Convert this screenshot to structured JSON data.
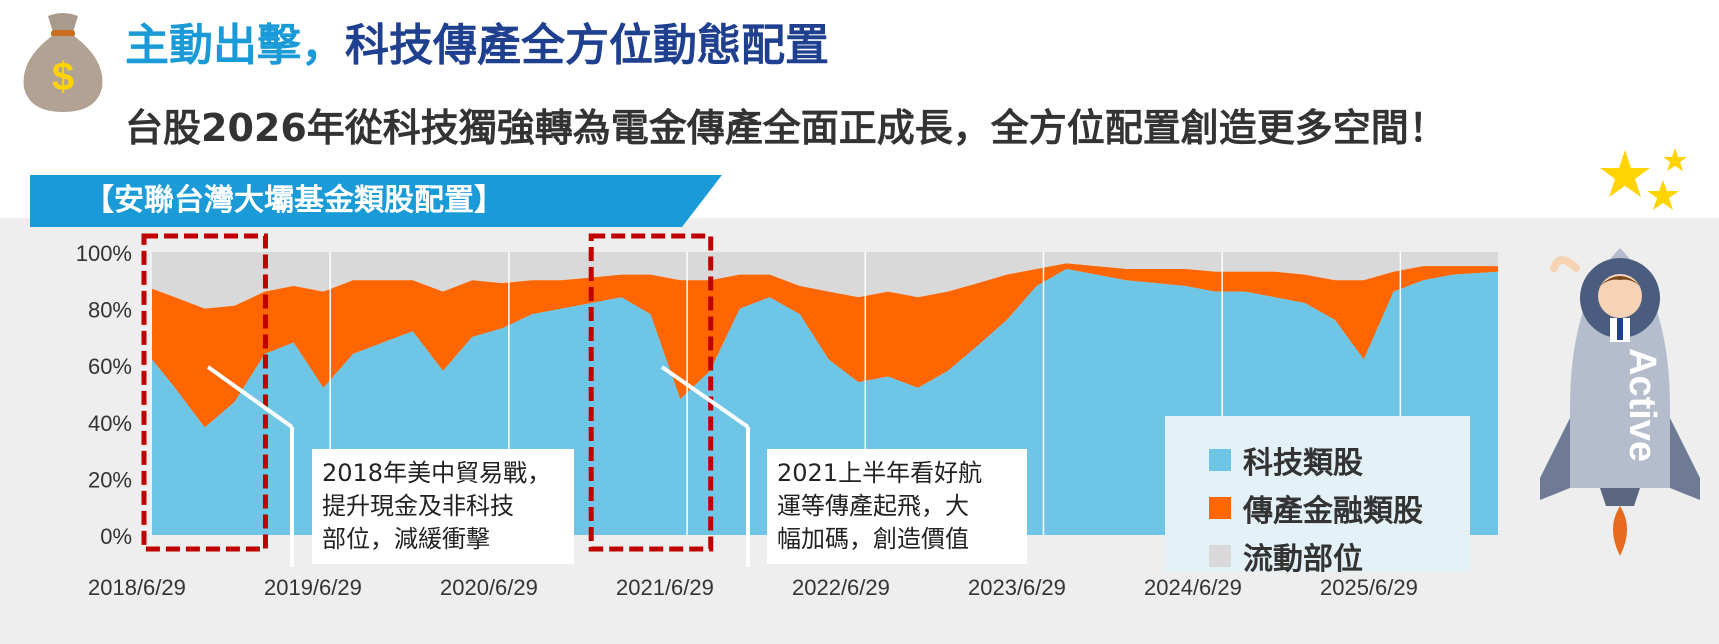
{
  "header": {
    "title_accent": "主動出擊，",
    "title_main": "科技傳產全方位動態配置",
    "subtitle": "台股2026年從科技獨強轉為電金傳產全面正成長，全方位配置創造更多空間！",
    "banner": "【安聯台灣大壩基金類股配置】"
  },
  "icons": {
    "money_bag": "money-bag-icon",
    "money_symbol": "$",
    "stars": "star-icon",
    "rocket": "rocket-mascot-icon",
    "rocket_label": "Active"
  },
  "colors": {
    "tech": "#6ec5e6",
    "traditional": "#ff6600",
    "liquidity": "#d9d9d9",
    "highlight_box": "#c00000",
    "title_accent": "#1a9bd7",
    "title_main": "#1f3f8f",
    "banner": "#1a9bd7"
  },
  "annotations": [
    {
      "text": "2018年美中貿易戰，\n提升現金及非科技\n部位，減緩衝擊"
    },
    {
      "text": "2021上半年看好航\n運等傳產起飛，大\n幅加碼，創造價值"
    }
  ],
  "legend": [
    {
      "label": "科技類股",
      "color": "#6ec5e6"
    },
    {
      "label": "傳產金融類股",
      "color": "#ff6600"
    },
    {
      "label": "流動部位",
      "color": "#d9d9d9"
    }
  ],
  "chart_data": {
    "type": "area",
    "stacked": true,
    "title": "",
    "xlabel": "",
    "ylabel": "",
    "ylim": [
      0,
      100
    ],
    "y_ticks": [
      "0%",
      "20%",
      "40%",
      "60%",
      "80%",
      "100%"
    ],
    "x_ticks": [
      "2018/6/29",
      "2019/6/29",
      "2020/6/29",
      "2021/6/29",
      "2022/6/29",
      "2023/6/29",
      "2024/6/29",
      "2025/6/29"
    ],
    "grid": false,
    "legend_position": "bottom-right",
    "x_range": [
      "2018-06-29",
      "2026-01-15"
    ],
    "highlight_periods": [
      [
        "2018-06-29",
        "2019-01-31"
      ],
      [
        "2020-12-31",
        "2021-07-31"
      ]
    ],
    "x": [
      "2018-06",
      "2018-08",
      "2018-10",
      "2018-12",
      "2019-02",
      "2019-04",
      "2019-06",
      "2019-08",
      "2019-10",
      "2019-12",
      "2020-02",
      "2020-04",
      "2020-06",
      "2020-08",
      "2020-10",
      "2020-12",
      "2021-02",
      "2021-04",
      "2021-06",
      "2021-08",
      "2021-10",
      "2021-12",
      "2022-02",
      "2022-04",
      "2022-06",
      "2022-08",
      "2022-10",
      "2022-12",
      "2023-02",
      "2023-04",
      "2023-06",
      "2023-08",
      "2023-10",
      "2023-12",
      "2024-02",
      "2024-04",
      "2024-06",
      "2024-08",
      "2024-10",
      "2024-12",
      "2025-02",
      "2025-04",
      "2025-06",
      "2025-08",
      "2025-10",
      "2025-12"
    ],
    "series": [
      {
        "name": "科技類股",
        "values": [
          62,
          52,
          38,
          47,
          64,
          68,
          52,
          64,
          68,
          72,
          58,
          70,
          73,
          78,
          80,
          82,
          84,
          78,
          48,
          58,
          80,
          84,
          78,
          62,
          54,
          56,
          52,
          58,
          67,
          76,
          88,
          94,
          92,
          90,
          89,
          88,
          86,
          86,
          84,
          82,
          76,
          62,
          86,
          90,
          92,
          93
        ]
      },
      {
        "name": "傳產金融類股",
        "values": [
          25,
          32,
          42,
          34,
          22,
          20,
          34,
          26,
          22,
          18,
          28,
          20,
          16,
          12,
          10,
          9,
          8,
          14,
          42,
          32,
          12,
          8,
          10,
          24,
          30,
          30,
          32,
          28,
          22,
          16,
          6,
          2,
          3,
          4,
          5,
          6,
          7,
          7,
          9,
          10,
          14,
          28,
          7,
          5,
          3,
          2
        ]
      },
      {
        "name": "流動部位",
        "values": [
          13,
          16,
          20,
          19,
          14,
          12,
          14,
          10,
          10,
          10,
          14,
          10,
          11,
          10,
          10,
          9,
          8,
          8,
          10,
          10,
          8,
          8,
          12,
          14,
          16,
          14,
          16,
          14,
          11,
          8,
          6,
          4,
          5,
          6,
          6,
          6,
          7,
          7,
          7,
          8,
          10,
          10,
          7,
          5,
          5,
          5
        ]
      }
    ]
  }
}
